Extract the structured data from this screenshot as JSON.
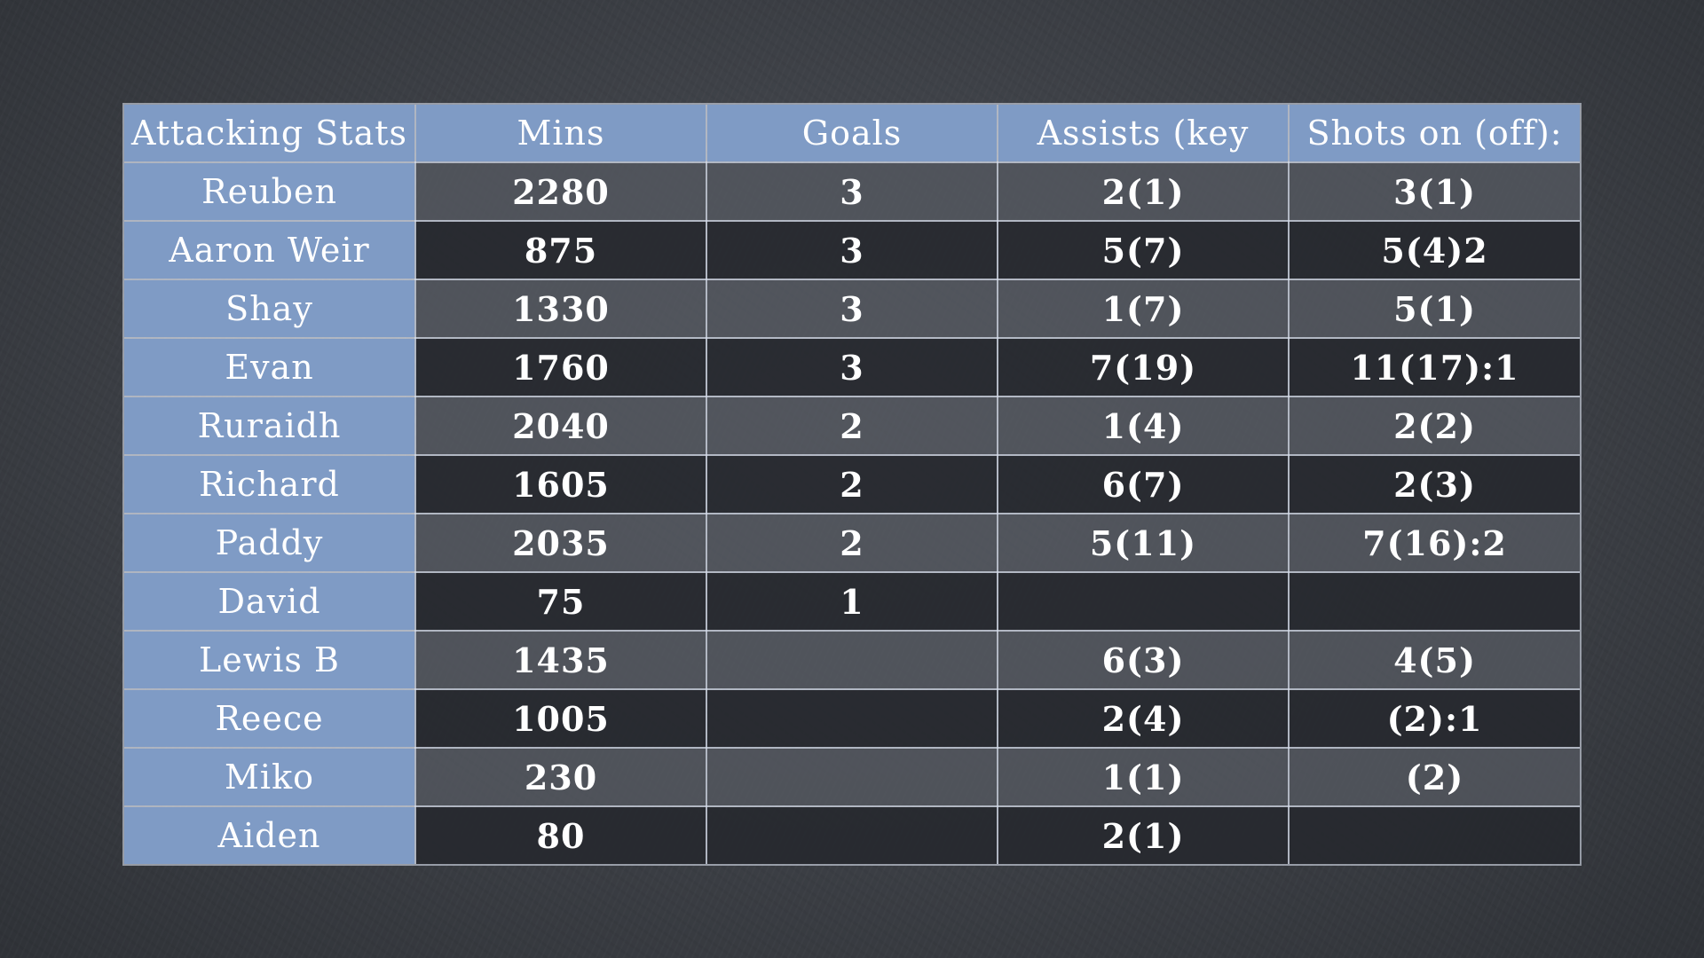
{
  "table": {
    "headers": [
      "Attacking Stats",
      "Mins",
      "Goals",
      "Assists (key",
      "Shots on (off):"
    ],
    "rows": [
      {
        "name": "Reuben",
        "mins": "2280",
        "goals": "3",
        "assists": "2(1)",
        "shots": "3(1)"
      },
      {
        "name": "Aaron Weir",
        "mins": "875",
        "goals": "3",
        "assists": "5(7)",
        "shots": "5(4)2"
      },
      {
        "name": "Shay",
        "mins": "1330",
        "goals": "3",
        "assists": "1(7)",
        "shots": "5(1)"
      },
      {
        "name": "Evan",
        "mins": "1760",
        "goals": "3",
        "assists": "7(19)",
        "shots": "11(17):1"
      },
      {
        "name": "Ruraidh",
        "mins": "2040",
        "goals": "2",
        "assists": "1(4)",
        "shots": "2(2)"
      },
      {
        "name": "Richard",
        "mins": "1605",
        "goals": "2",
        "assists": "6(7)",
        "shots": "2(3)"
      },
      {
        "name": "Paddy",
        "mins": "2035",
        "goals": "2",
        "assists": "5(11)",
        "shots": "7(16):2"
      },
      {
        "name": "David",
        "mins": "75",
        "goals": "1",
        "assists": "",
        "shots": ""
      },
      {
        "name": "Lewis B",
        "mins": "1435",
        "goals": "",
        "assists": "6(3)",
        "shots": "4(5)"
      },
      {
        "name": "Reece",
        "mins": "1005",
        "goals": "",
        "assists": "2(4)",
        "shots": "(2):1"
      },
      {
        "name": "Miko",
        "mins": "230",
        "goals": "",
        "assists": "1(1)",
        "shots": "(2)"
      },
      {
        "name": "Aiden",
        "mins": "80",
        "goals": "",
        "assists": "2(1)",
        "shots": ""
      }
    ]
  },
  "colors": {
    "header_bg": "#7f9bc5",
    "board_bg": "#3f4248",
    "text": "#ffffff"
  }
}
